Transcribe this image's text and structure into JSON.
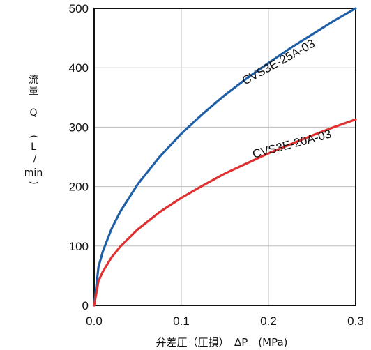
{
  "chart_data": {
    "type": "line",
    "xlabel": "弁差圧（圧損）　ΔP　(MPa)",
    "ylabel": "流量 Q (L/min)",
    "ylabel_parts": [
      "流",
      "量",
      "Q",
      "(",
      "L",
      "/",
      "min",
      ")"
    ],
    "xlim": [
      0,
      0.3
    ],
    "ylim": [
      0,
      500
    ],
    "x_ticks": [
      0,
      0.1,
      0.2,
      0.3
    ],
    "x_tick_labels": [
      "0.0",
      "0.1",
      "0.2",
      "0.3"
    ],
    "y_ticks": [
      0,
      100,
      200,
      300,
      400,
      500
    ],
    "y_tick_labels": [
      "0",
      "100",
      "200",
      "300",
      "400",
      "500"
    ],
    "grid": true,
    "series": [
      {
        "name": "CVS3E-25A-03",
        "color": "#1f5fa8",
        "x": [
          0,
          0.005,
          0.01,
          0.02,
          0.03,
          0.05,
          0.075,
          0.1,
          0.125,
          0.15,
          0.175,
          0.2,
          0.225,
          0.25,
          0.275,
          0.3
        ],
        "y": [
          0,
          65,
          91,
          129,
          158,
          204,
          250,
          289,
          323,
          354,
          382,
          408,
          433,
          456,
          479,
          500
        ]
      },
      {
        "name": "CVS3E-20A-03",
        "color": "#e03030",
        "x": [
          0,
          0.005,
          0.01,
          0.02,
          0.03,
          0.05,
          0.075,
          0.1,
          0.125,
          0.15,
          0.175,
          0.2,
          0.225,
          0.25,
          0.275,
          0.3
        ],
        "y": [
          0,
          41,
          57,
          81,
          99,
          128,
          157,
          181,
          202,
          222,
          239,
          256,
          271,
          286,
          300,
          313
        ]
      }
    ]
  }
}
